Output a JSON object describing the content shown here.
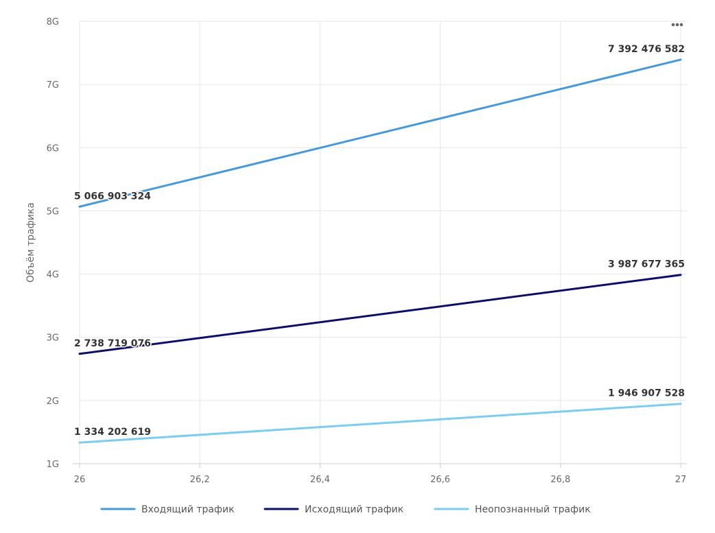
{
  "chart_data": {
    "type": "line",
    "title": "",
    "xlabel": "",
    "ylabel": "Объём трафика",
    "x": [
      26,
      27
    ],
    "xlim": [
      26,
      27
    ],
    "x_ticks": [
      26,
      26.2,
      26.4,
      26.6,
      26.8,
      27
    ],
    "x_tick_labels": [
      "26",
      "26,2",
      "26,4",
      "26,6",
      "26,8",
      "27"
    ],
    "ylim": [
      1000000000,
      8000000000
    ],
    "y_ticks": [
      1000000000,
      2000000000,
      3000000000,
      4000000000,
      5000000000,
      6000000000,
      7000000000,
      8000000000
    ],
    "y_tick_labels": [
      "1G",
      "2G",
      "3G",
      "4G",
      "5G",
      "6G",
      "7G",
      "8G"
    ],
    "grid": true,
    "legend_position": "bottom",
    "series": [
      {
        "name": "Входящий трафик",
        "color": "#4299e1",
        "values": [
          5066903324,
          7392476582
        ],
        "labels": [
          "5 066 903 324",
          "7 392 476 582"
        ]
      },
      {
        "name": "Исходящий трафик",
        "color": "#0b0c6e",
        "values": [
          2738719076,
          3987677365
        ],
        "labels": [
          "2 738 719 076",
          "3 987 677 365"
        ]
      },
      {
        "name": "Неопознанный трафик",
        "color": "#78cdf5",
        "values": [
          1334202619,
          1946907528
        ],
        "labels": [
          "1 334 202 619",
          "1 946 907 528"
        ]
      }
    ]
  },
  "menu": {
    "icon": "more-horizontal-icon"
  }
}
